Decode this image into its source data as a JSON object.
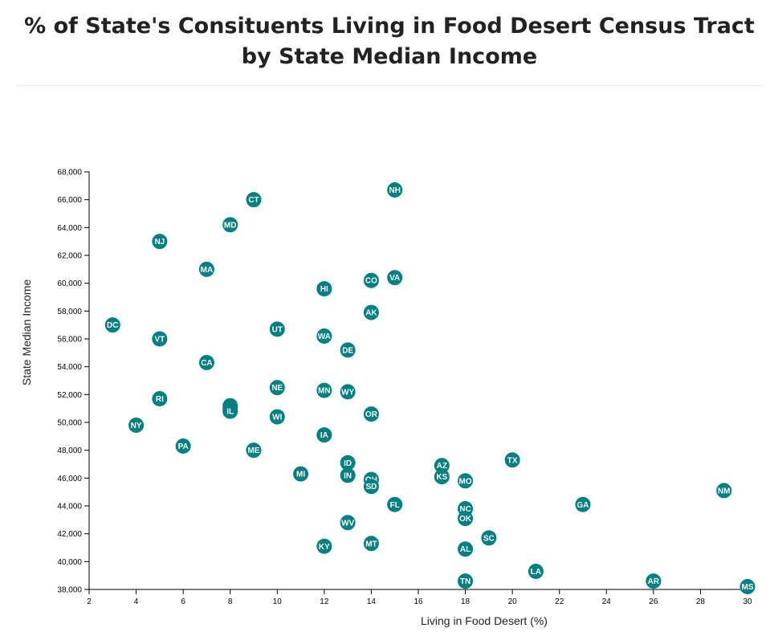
{
  "title": "% of State's Consituents Living in Food Desert Census Tract by State Median Income",
  "colors": {
    "point": "#008080",
    "point_text": "#ffffff",
    "axis": "#000000"
  },
  "chart_data": {
    "type": "scatter",
    "title": "% of State's Consituents Living in Food Desert Census Tract by State Median Income",
    "xlabel": "Living in Food Desert (%)",
    "ylabel": "State Median Income",
    "xlim": [
      2,
      30
    ],
    "ylim": [
      38000,
      68000
    ],
    "xticks": [
      2,
      4,
      6,
      8,
      10,
      12,
      14,
      16,
      18,
      20,
      22,
      24,
      26,
      28,
      30
    ],
    "yticks": [
      38000,
      40000,
      42000,
      44000,
      46000,
      48000,
      50000,
      52000,
      54000,
      56000,
      58000,
      60000,
      62000,
      64000,
      66000,
      68000
    ],
    "xtick_labels": [
      "2",
      "4",
      "6",
      "8",
      "10",
      "12",
      "14",
      "16",
      "18",
      "20",
      "22",
      "24",
      "26",
      "28",
      "30"
    ],
    "ytick_labels": [
      "38,000",
      "40,000",
      "42,000",
      "44,000",
      "46,000",
      "48,000",
      "50,000",
      "52,000",
      "54,000",
      "56,000",
      "58,000",
      "60,000",
      "62,000",
      "64,000",
      "66,000",
      "68,000"
    ],
    "grid": false,
    "points": [
      {
        "label": "NH",
        "x": 15,
        "y": 66700
      },
      {
        "label": "CT",
        "x": 9,
        "y": 66000
      },
      {
        "label": "MD",
        "x": 8,
        "y": 64200
      },
      {
        "label": "NJ",
        "x": 5,
        "y": 63000
      },
      {
        "label": "MA",
        "x": 7,
        "y": 61000
      },
      {
        "label": "CO",
        "x": 14,
        "y": 60200
      },
      {
        "label": "VA",
        "x": 15,
        "y": 60400
      },
      {
        "label": "HI",
        "x": 12,
        "y": 59600
      },
      {
        "label": "AK",
        "x": 14,
        "y": 57900
      },
      {
        "label": "DC",
        "x": 3,
        "y": 57000
      },
      {
        "label": "UT",
        "x": 10,
        "y": 56700
      },
      {
        "label": "WA",
        "x": 12,
        "y": 56200
      },
      {
        "label": "VT",
        "x": 5,
        "y": 56000
      },
      {
        "label": "DE",
        "x": 13,
        "y": 55200
      },
      {
        "label": "CA",
        "x": 7,
        "y": 54300
      },
      {
        "label": "NE",
        "x": 10,
        "y": 52500
      },
      {
        "label": "MN",
        "x": 12,
        "y": 52300
      },
      {
        "label": "WY",
        "x": 13,
        "y": 52200
      },
      {
        "label": "RI",
        "x": 5,
        "y": 51700
      },
      {
        "label": "NV",
        "x": 8,
        "y": 51200
      },
      {
        "label": "ND",
        "x": 8,
        "y": 51000
      },
      {
        "label": "IL",
        "x": 8,
        "y": 50800
      },
      {
        "label": "OR",
        "x": 14,
        "y": 50600
      },
      {
        "label": "WI",
        "x": 10,
        "y": 50400
      },
      {
        "label": "NY",
        "x": 4,
        "y": 49800
      },
      {
        "label": "IA",
        "x": 12,
        "y": 49100
      },
      {
        "label": "PA",
        "x": 6,
        "y": 48300
      },
      {
        "label": "ME",
        "x": 9,
        "y": 48000
      },
      {
        "label": "TX",
        "x": 20,
        "y": 47300
      },
      {
        "label": "ID",
        "x": 13,
        "y": 47100
      },
      {
        "label": "AZ",
        "x": 17,
        "y": 46900
      },
      {
        "label": "MI",
        "x": 11,
        "y": 46300
      },
      {
        "label": "IN",
        "x": 13,
        "y": 46200
      },
      {
        "label": "KS",
        "x": 17,
        "y": 46100
      },
      {
        "label": "OH",
        "x": 14,
        "y": 45900
      },
      {
        "label": "MO",
        "x": 18,
        "y": 45800
      },
      {
        "label": "SD",
        "x": 14,
        "y": 45400
      },
      {
        "label": "NM",
        "x": 29,
        "y": 45100
      },
      {
        "label": "GA",
        "x": 23,
        "y": 44100
      },
      {
        "label": "FL",
        "x": 15,
        "y": 44100
      },
      {
        "label": "NC",
        "x": 18,
        "y": 43800
      },
      {
        "label": "OK",
        "x": 18,
        "y": 43100
      },
      {
        "label": "WV",
        "x": 13,
        "y": 42800
      },
      {
        "label": "SC",
        "x": 19,
        "y": 41700
      },
      {
        "label": "MT",
        "x": 14,
        "y": 41300
      },
      {
        "label": "KY",
        "x": 12,
        "y": 41100
      },
      {
        "label": "AL",
        "x": 18,
        "y": 40900
      },
      {
        "label": "LA",
        "x": 21,
        "y": 39300
      },
      {
        "label": "TN",
        "x": 18,
        "y": 38600
      },
      {
        "label": "AR",
        "x": 26,
        "y": 38600
      },
      {
        "label": "MS",
        "x": 30,
        "y": 38200
      }
    ]
  }
}
